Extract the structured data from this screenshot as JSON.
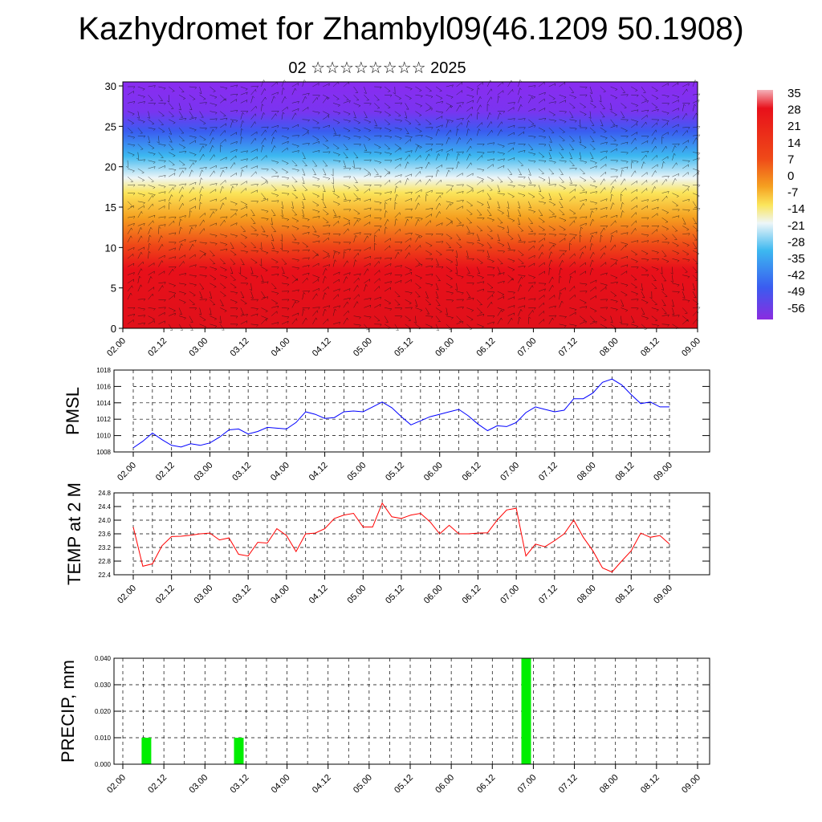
{
  "title": "Kazhydromet for Zhambyl09(46.1209 50.1908)",
  "subtitle": "02 ☆☆☆☆☆☆☆☆ 2025",
  "chart_data": [
    {
      "type": "heatmap",
      "description": "Temperature cross-section with wind barbs",
      "x_tick_labels": [
        "02.00",
        "02.12",
        "03.00",
        "03.12",
        "04.00",
        "04.12",
        "05.00",
        "05.12",
        "06.00",
        "06.12",
        "07.00",
        "07.12",
        "08.00",
        "08.12",
        "09.00"
      ],
      "y_ticks": [
        0,
        5,
        10,
        15,
        20,
        25,
        30
      ],
      "ylim": [
        0,
        30.5
      ],
      "colorbar_labels": [
        "35",
        "28",
        "21",
        "14",
        "7",
        "0",
        "-7",
        "-14",
        "-21",
        "-28",
        "-35",
        "-42",
        "-49",
        "-56"
      ],
      "colors": {
        "warm": "#e8101a",
        "orange": "#f5a020",
        "yellow": "#fbe55a",
        "pale": "#eef6f8",
        "cyan": "#3cb8f0",
        "blue": "#3a5cf0",
        "violet": "#8a2cf0",
        "top": "#f4b0b8",
        "bottom": "#8a2ce0"
      }
    },
    {
      "type": "line",
      "ylabel": "PMSL",
      "color": "#0000ff",
      "ylim": [
        1008,
        1018
      ],
      "y_ticks": [
        1008,
        1010,
        1012,
        1014,
        1016,
        1018
      ],
      "x_tick_labels": [
        "02.00",
        "02.12",
        "03.00",
        "03.12",
        "04.00",
        "04.12",
        "05.00",
        "05.12",
        "06.00",
        "06.12",
        "07.00",
        "07.12",
        "08.00",
        "08.12",
        "09.00"
      ],
      "values": [
        1008.5,
        1009.3,
        1010.3,
        1009.5,
        1008.8,
        1008.6,
        1009.0,
        1008.8,
        1009.1,
        1009.8,
        1010.7,
        1010.8,
        1010.2,
        1010.5,
        1011.0,
        1010.9,
        1010.8,
        1011.6,
        1012.9,
        1012.6,
        1012.1,
        1012.2,
        1012.9,
        1013.0,
        1012.9,
        1013.5,
        1014.1,
        1013.4,
        1012.3,
        1011.3,
        1011.8,
        1012.3,
        1012.6,
        1012.9,
        1013.2,
        1012.4,
        1011.4,
        1010.6,
        1011.2,
        1011.1,
        1011.6,
        1012.8,
        1013.5,
        1013.2,
        1012.9,
        1013.1,
        1014.5,
        1014.5,
        1015.2,
        1016.5,
        1016.9,
        1016.2,
        1015.0,
        1013.9,
        1014.1,
        1013.5,
        1013.5
      ]
    },
    {
      "type": "line",
      "ylabel": "TEMP at 2 M",
      "color": "#ff0000",
      "ylim": [
        22.4,
        24.8
      ],
      "y_ticks": [
        22.4,
        22.8,
        23.2,
        23.6,
        24.0,
        24.4,
        24.8
      ],
      "x_tick_labels": [
        "02.00",
        "02.12",
        "03.00",
        "03.12",
        "04.00",
        "04.12",
        "05.00",
        "05.12",
        "06.00",
        "06.12",
        "07.00",
        "07.12",
        "08.00",
        "08.12",
        "09.00"
      ],
      "values": [
        23.8,
        22.65,
        22.72,
        23.25,
        23.52,
        23.53,
        23.56,
        23.6,
        23.62,
        23.42,
        23.48,
        23.0,
        22.95,
        23.35,
        23.33,
        23.75,
        23.55,
        23.08,
        23.6,
        23.62,
        23.75,
        24.05,
        24.15,
        24.2,
        23.8,
        23.8,
        24.5,
        24.1,
        24.05,
        24.15,
        24.2,
        23.95,
        23.6,
        23.85,
        23.6,
        23.6,
        23.62,
        23.63,
        24.0,
        24.3,
        24.35,
        22.95,
        23.3,
        23.22,
        23.4,
        23.6,
        24.0,
        23.5,
        23.1,
        22.6,
        22.48,
        22.8,
        23.1,
        23.62,
        23.5,
        23.55,
        23.3
      ]
    },
    {
      "type": "bar",
      "ylabel": "PRECIP, mm",
      "color": "#00ee00",
      "ylim": [
        0,
        0.04
      ],
      "y_tick_labels": [
        "0.000",
        "0.010",
        "0.020",
        "0.030",
        "0.040"
      ],
      "x_tick_labels": [
        "02.00",
        "02.12",
        "03.00",
        "03.12",
        "04.00",
        "04.12",
        "05.00",
        "05.12",
        "06.00",
        "06.12",
        "07.00",
        "07.12",
        "08.00",
        "08.12",
        "09.00"
      ],
      "bars": [
        {
          "x": 1,
          "value": 0.01
        },
        {
          "x": 10,
          "value": 0.01
        },
        {
          "x": 38,
          "value": 0.04
        }
      ]
    }
  ]
}
